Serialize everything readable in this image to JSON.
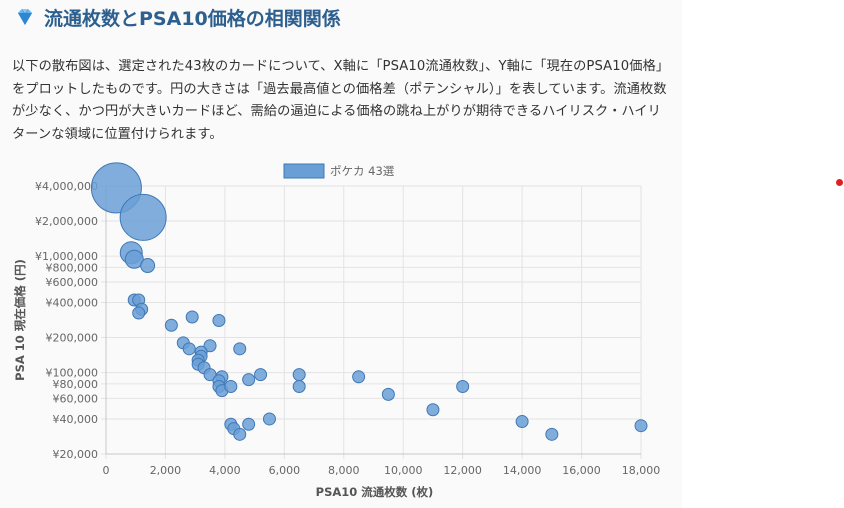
{
  "article": {
    "title": "流通枚数とPSA10価格の相関関係",
    "paragraph": "以下の散布図は、選定された43枚のカードについて、X軸に「PSA10流通枚数」、Y軸に「現在のPSA10価格」をプロットしたものです。円の大きさは「過去最高値との価格差（ポテンシャル）」を表しています。流通枚数が少なく、かつ円が大きいカードほど、需給の逼迫による価格の跳ね上がりが期待できるハイリスク・ハイリターンな領域に位置付けられます。"
  },
  "icons": {
    "title_icon": "diamond-icon"
  },
  "colors": {
    "title": "#2d5f8f",
    "point_fill": "#6a9fd6",
    "point_stroke": "#3f78b5",
    "grid": "#e3e3e3",
    "marker_dot": "#e02020"
  },
  "chart_data": {
    "type": "scatter",
    "legend": {
      "label": "ポケカ 43選",
      "position": "top"
    },
    "xlabel": "PSA10 流通枚数 (枚)",
    "ylabel": "PSA 10 現在価格 (円)",
    "xlim": [
      0,
      18000
    ],
    "ylim": [
      20000,
      4000000
    ],
    "y_scale": "log",
    "grid": true,
    "x_ticks": [
      0,
      2000,
      4000,
      6000,
      8000,
      10000,
      12000,
      14000,
      16000,
      18000
    ],
    "x_tick_labels": [
      "0",
      "2,000",
      "4,000",
      "6,000",
      "8,000",
      "10,000",
      "12,000",
      "14,000",
      "16,000",
      "18,000"
    ],
    "y_ticks": [
      20000,
      40000,
      60000,
      80000,
      100000,
      200000,
      400000,
      600000,
      800000,
      1000000,
      2000000,
      4000000
    ],
    "y_tick_labels": [
      "¥20,000",
      "¥40,000",
      "¥60,000",
      "¥80,000",
      "¥100,000",
      "¥200,000",
      "¥400,000",
      "¥600,000",
      "¥800,000",
      "¥1,000,000",
      "¥2,000,000",
      "¥4,000,000"
    ],
    "series": [
      {
        "name": "ポケカ 43選",
        "points": [
          {
            "x": 350,
            "y": 3850000,
            "size": 25
          },
          {
            "x": 1250,
            "y": 2150000,
            "size": 23
          },
          {
            "x": 850,
            "y": 1070000,
            "size": 11
          },
          {
            "x": 950,
            "y": 940000,
            "size": 9
          },
          {
            "x": 1400,
            "y": 830000,
            "size": 7
          },
          {
            "x": 950,
            "y": 420000,
            "size": 6
          },
          {
            "x": 1100,
            "y": 420000,
            "size": 6
          },
          {
            "x": 1200,
            "y": 350000,
            "size": 6
          },
          {
            "x": 1100,
            "y": 325000,
            "size": 6
          },
          {
            "x": 2200,
            "y": 255000,
            "size": 6
          },
          {
            "x": 2900,
            "y": 300000,
            "size": 6
          },
          {
            "x": 3800,
            "y": 280000,
            "size": 6
          },
          {
            "x": 2600,
            "y": 180000,
            "size": 6
          },
          {
            "x": 2800,
            "y": 160000,
            "size": 6
          },
          {
            "x": 3500,
            "y": 170000,
            "size": 6
          },
          {
            "x": 3200,
            "y": 150000,
            "size": 6
          },
          {
            "x": 3200,
            "y": 138000,
            "size": 6
          },
          {
            "x": 3100,
            "y": 128000,
            "size": 6
          },
          {
            "x": 3100,
            "y": 118000,
            "size": 6
          },
          {
            "x": 3300,
            "y": 110000,
            "size": 6
          },
          {
            "x": 3500,
            "y": 96000,
            "size": 6
          },
          {
            "x": 4500,
            "y": 160000,
            "size": 6
          },
          {
            "x": 3900,
            "y": 92000,
            "size": 6
          },
          {
            "x": 3800,
            "y": 85000,
            "size": 6
          },
          {
            "x": 3800,
            "y": 76000,
            "size": 6
          },
          {
            "x": 3900,
            "y": 70000,
            "size": 6
          },
          {
            "x": 4200,
            "y": 76000,
            "size": 6
          },
          {
            "x": 4800,
            "y": 87000,
            "size": 6
          },
          {
            "x": 5200,
            "y": 96000,
            "size": 6
          },
          {
            "x": 6500,
            "y": 96000,
            "size": 6
          },
          {
            "x": 6500,
            "y": 76000,
            "size": 6
          },
          {
            "x": 8500,
            "y": 92000,
            "size": 6
          },
          {
            "x": 9500,
            "y": 65000,
            "size": 6
          },
          {
            "x": 12000,
            "y": 76000,
            "size": 6
          },
          {
            "x": 11000,
            "y": 48000,
            "size": 6
          },
          {
            "x": 4200,
            "y": 36000,
            "size": 6
          },
          {
            "x": 4300,
            "y": 33000,
            "size": 6
          },
          {
            "x": 4500,
            "y": 29500,
            "size": 6
          },
          {
            "x": 4800,
            "y": 36000,
            "size": 6
          },
          {
            "x": 5500,
            "y": 40000,
            "size": 6
          },
          {
            "x": 14000,
            "y": 38000,
            "size": 6
          },
          {
            "x": 15000,
            "y": 29500,
            "size": 6
          },
          {
            "x": 18000,
            "y": 35000,
            "size": 6
          }
        ]
      }
    ]
  }
}
